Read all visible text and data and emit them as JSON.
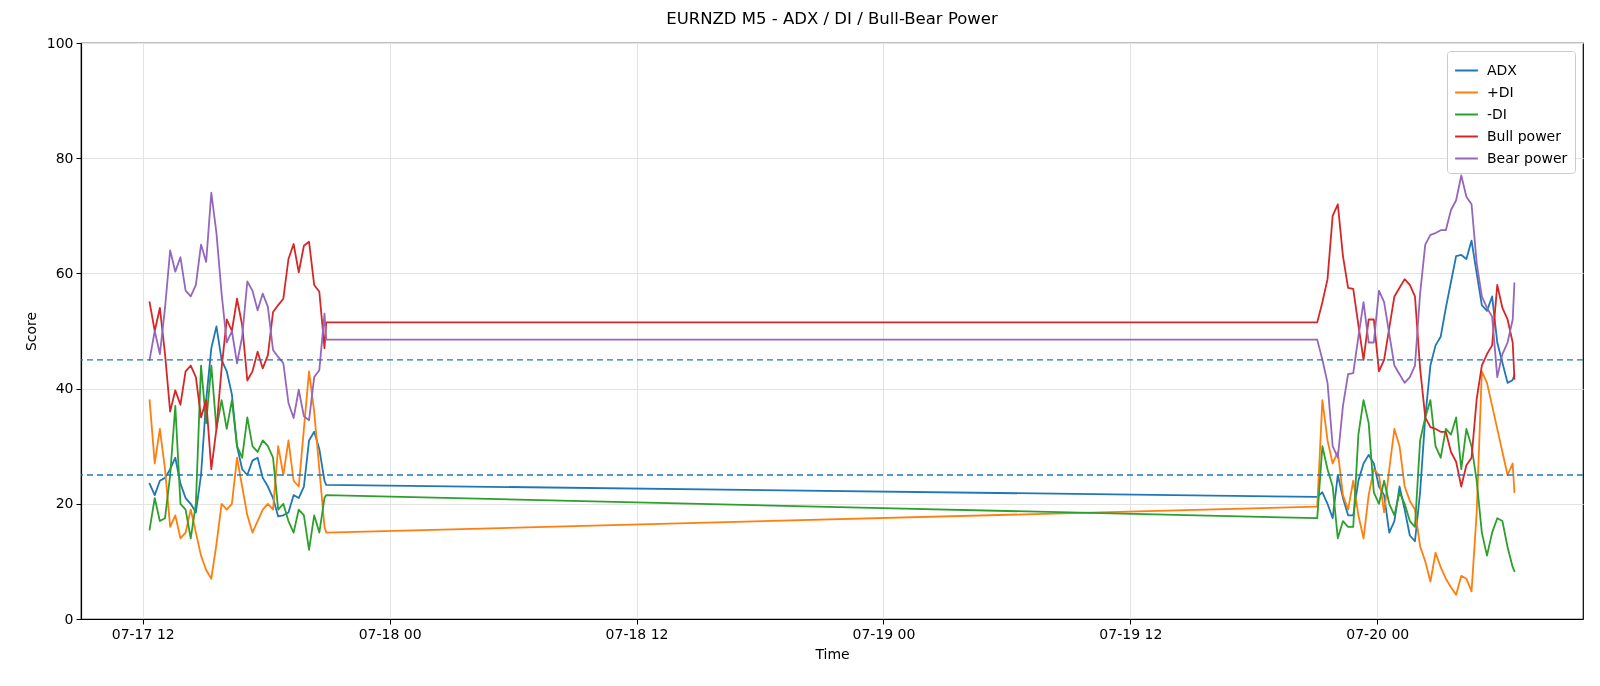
{
  "chart_data": {
    "type": "line",
    "title": "EURNZD M5 - ADX / DI / Bull-Bear Power",
    "xlabel": "Time",
    "ylabel": "Score",
    "x": [
      "--07-17T12:20",
      "--07-17T12:35",
      "--07-17T12:50",
      "--07-17T13:05",
      "--07-17T13:20",
      "--07-17T13:35",
      "--07-17T13:50",
      "--07-17T14:05",
      "--07-17T14:20",
      "--07-17T14:35",
      "--07-17T14:50",
      "--07-17T15:05",
      "--07-17T15:20",
      "--07-17T15:35",
      "--07-17T15:50",
      "--07-17T16:05",
      "--07-17T16:20",
      "--07-17T16:35",
      "--07-17T16:50",
      "--07-17T17:05",
      "--07-17T17:20",
      "--07-17T17:35",
      "--07-17T17:50",
      "--07-17T18:05",
      "--07-17T18:20",
      "--07-17T18:35",
      "--07-17T18:50",
      "--07-17T19:05",
      "--07-17T19:20",
      "--07-17T19:35",
      "--07-17T19:50",
      "--07-17T20:05",
      "--07-17T20:20",
      "--07-17T20:35",
      "--07-17T20:50",
      "--07-17T20:55",
      "--07-19T21:05",
      "--07-19T21:20",
      "--07-19T21:35",
      "--07-19T21:50",
      "--07-19T22:05",
      "--07-19T22:20",
      "--07-19T22:35",
      "--07-19T22:50",
      "--07-19T23:05",
      "--07-19T23:20",
      "--07-19T23:35",
      "--07-19T23:50",
      "--07-20T00:05",
      "--07-20T00:20",
      "--07-20T00:35",
      "--07-20T00:50",
      "--07-20T01:05",
      "--07-20T01:20",
      "--07-20T01:35",
      "--07-20T01:50",
      "--07-20T02:05",
      "--07-20T02:20",
      "--07-20T02:35",
      "--07-20T02:50",
      "--07-20T03:05",
      "--07-20T03:20",
      "--07-20T03:35",
      "--07-20T03:50",
      "--07-20T04:05",
      "--07-20T04:20",
      "--07-20T04:35",
      "--07-20T04:50",
      "--07-20T05:05",
      "--07-20T05:20",
      "--07-20T05:35",
      "--07-20T05:50",
      "--07-20T06:05",
      "--07-20T06:20",
      "--07-20T06:35",
      "--07-20T06:40"
    ],
    "series": [
      {
        "name": "ADX",
        "color": "#1f77b4",
        "values": [
          23.5,
          21.5,
          24,
          24.5,
          26,
          28,
          23.5,
          21,
          20,
          18.5,
          25,
          38,
          47,
          50.8,
          45,
          43,
          39,
          30,
          26,
          25,
          27.5,
          28,
          24.5,
          23,
          21,
          17.8,
          18,
          18.5,
          21.5,
          21,
          23,
          31,
          32.5,
          29.5,
          24,
          23.3,
          21.2,
          22,
          20,
          17.5,
          25,
          21,
          18,
          18,
          24,
          27,
          28.5,
          27,
          23,
          21.5,
          15,
          17,
          23,
          19,
          14.5,
          13.5,
          22,
          35,
          44,
          47.5,
          49,
          54,
          58.5,
          63,
          63.2,
          62.5,
          65.7,
          60,
          54.5,
          53.5,
          56,
          48,
          44.5,
          41,
          41.5,
          42.4
        ]
      },
      {
        "name": "+DI",
        "color": "#ff7f0e",
        "values": [
          38,
          27,
          33,
          26,
          16,
          18,
          14,
          15,
          19,
          15,
          11,
          8.5,
          7,
          13,
          20,
          19,
          20,
          28,
          23,
          18,
          15,
          17,
          19,
          20,
          19,
          30,
          25,
          31,
          24,
          23,
          33,
          43,
          36,
          26,
          16,
          15,
          19.5,
          38,
          31,
          27,
          29,
          21.5,
          19,
          24,
          18,
          14,
          21.5,
          26,
          25,
          18.5,
          26,
          33,
          30,
          23,
          20.5,
          19,
          12.6,
          10,
          6.5,
          11.5,
          9,
          7,
          5.5,
          4.2,
          7.5,
          7,
          4.8,
          18.5,
          43,
          41,
          37,
          33,
          29,
          25,
          27,
          22
        ]
      },
      {
        "name": "-DI",
        "color": "#2ca02c",
        "values": [
          15.5,
          21,
          17,
          17.5,
          25,
          37,
          20,
          19,
          14,
          20,
          44,
          34,
          44,
          33,
          38,
          33,
          38,
          30,
          28,
          35,
          30,
          29,
          31,
          30,
          28,
          19,
          20,
          17,
          15,
          19,
          18,
          12,
          18,
          15,
          21,
          21.5,
          17.5,
          30,
          26,
          23,
          14,
          17,
          16,
          16,
          32,
          38,
          34,
          22,
          20,
          24,
          20,
          18,
          22,
          20,
          17,
          16,
          31,
          35,
          38,
          30,
          28,
          33,
          32,
          35,
          26,
          33,
          30,
          24,
          15,
          11,
          15,
          17.5,
          17,
          12.5,
          9,
          8.3
        ]
      },
      {
        "name": "Bull power",
        "color": "#d62728",
        "values": [
          55,
          50,
          54,
          46,
          36,
          39.7,
          37.2,
          43,
          44,
          42,
          35,
          38,
          26,
          33,
          43.5,
          52,
          50,
          55.6,
          51,
          41.4,
          43,
          46.4,
          43.5,
          45.8,
          53.3,
          54.5,
          55.6,
          62.5,
          65.1,
          60.2,
          64.8,
          65.5,
          58,
          56.8,
          47,
          51.5,
          51.5,
          55,
          59,
          70,
          72,
          63,
          57.5,
          57.3,
          51,
          45,
          52,
          52,
          43,
          45,
          50.5,
          56,
          57.5,
          59,
          58,
          56,
          43.5,
          35,
          33.3,
          33,
          32.5,
          32.5,
          29,
          27.3,
          23,
          26.7,
          28,
          38.2,
          44,
          46,
          47.5,
          58,
          54,
          52,
          48,
          41.7
        ]
      },
      {
        "name": "Bear power",
        "color": "#9467bd",
        "values": [
          45,
          50,
          46,
          54,
          64,
          60.3,
          62.8,
          57,
          56,
          58,
          65,
          62,
          74,
          67,
          56.5,
          48,
          50,
          44.4,
          49,
          58.6,
          57,
          53.6,
          56.5,
          54.2,
          46.7,
          45.5,
          44.4,
          37.5,
          34.9,
          39.8,
          35.2,
          34.5,
          42,
          43.2,
          53,
          48.5,
          48.5,
          45,
          41,
          30,
          28,
          37,
          42.5,
          42.7,
          49,
          55,
          48,
          48,
          57,
          55,
          49.5,
          44,
          42.5,
          41,
          42,
          44,
          56.5,
          65,
          66.7,
          67,
          67.5,
          67.5,
          71,
          72.7,
          77,
          73.3,
          72,
          61.8,
          56,
          54,
          52.5,
          42,
          46,
          48,
          52,
          58.3
        ]
      }
    ],
    "xlim": [
      "--07-17T09:00",
      "--07-20T10:00"
    ],
    "xticks": [
      {
        "value": "--07-17T12:00",
        "label": "07-17 12"
      },
      {
        "value": "--07-18T00:00",
        "label": "07-18 00"
      },
      {
        "value": "--07-18T12:00",
        "label": "07-18 12"
      },
      {
        "value": "--07-19T00:00",
        "label": "07-19 00"
      },
      {
        "value": "--07-19T12:00",
        "label": "07-19 12"
      },
      {
        "value": "--07-20T00:00",
        "label": "07-20 00"
      }
    ],
    "ylim": [
      0,
      100
    ],
    "yticks": [
      0,
      20,
      40,
      60,
      80,
      100
    ],
    "ref_lines": [
      {
        "axis": "y",
        "value": 45,
        "color": "#1f77b4",
        "line_style": "dashed"
      },
      {
        "axis": "y",
        "value": 25,
        "color": "#1f77b4",
        "line_style": "dashed"
      }
    ],
    "grid": true,
    "legend": "top right"
  }
}
